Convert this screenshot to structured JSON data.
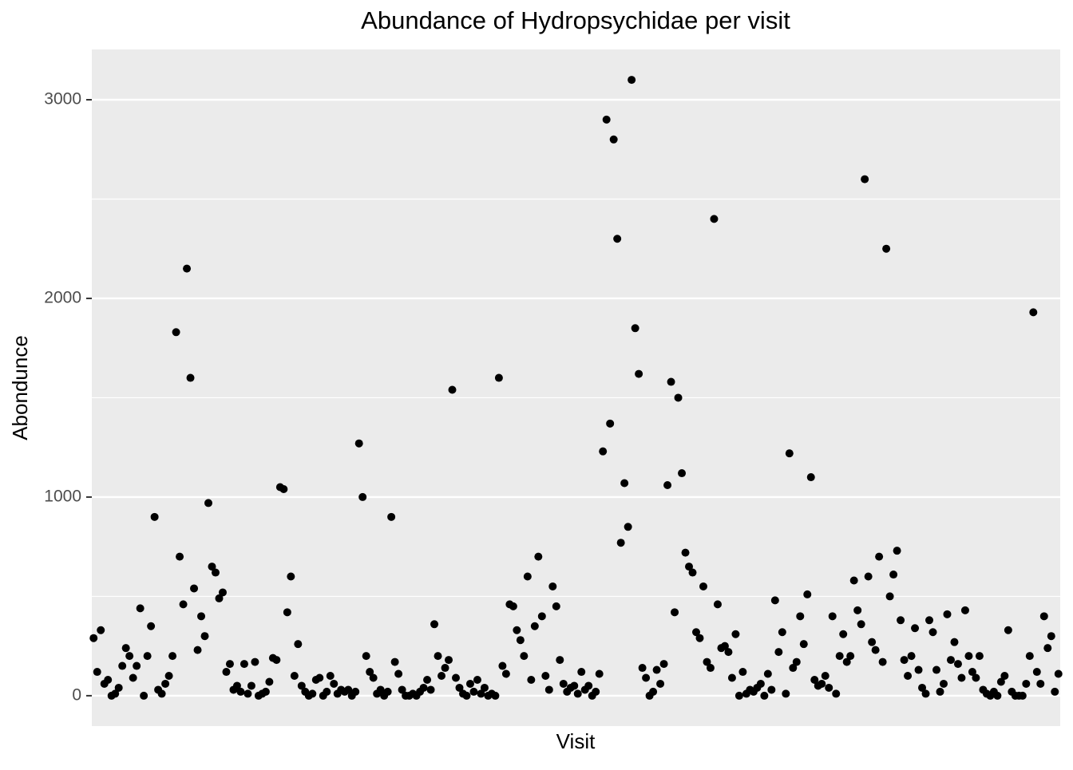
{
  "chart_data": {
    "type": "scatter",
    "title": "Abundance of Hydropsychidae per visit",
    "x_label": "Visit",
    "y_label": "Abondunce",
    "color": "#000000",
    "background": "#ebebeb",
    "grid": true,
    "ylim": [
      -153,
      3253
    ],
    "yticks": [
      0,
      1000,
      2000,
      3000
    ],
    "minor_yticks": [
      500,
      1500,
      2500
    ],
    "categories": [
      null,
      null,
      null,
      null,
      null,
      null,
      null,
      null,
      null,
      null,
      null,
      null,
      null,
      null,
      null,
      null,
      null,
      null,
      null,
      null,
      null,
      null,
      null,
      null,
      null,
      null,
      null,
      null,
      null,
      null,
      null,
      null,
      null,
      null,
      null,
      null,
      null,
      null,
      null,
      null,
      null,
      null,
      null,
      null,
      null,
      null,
      null,
      null,
      null,
      null,
      null,
      null,
      null,
      null,
      null,
      null,
      null,
      null,
      null,
      null,
      null,
      null,
      null,
      null,
      null,
      null,
      null,
      null,
      null,
      null,
      null,
      null,
      null,
      null,
      null,
      null,
      null,
      null,
      null,
      null,
      null,
      null,
      null,
      null,
      null,
      null,
      null,
      null,
      null,
      null,
      null,
      null,
      null,
      null,
      null,
      null,
      null,
      null,
      null,
      null,
      null,
      null,
      null,
      null,
      null,
      null,
      null,
      null,
      null,
      null,
      null,
      null,
      null,
      null,
      null,
      null,
      null,
      null,
      null,
      null,
      null,
      null,
      null,
      null,
      null,
      null,
      null,
      null,
      null,
      null,
      null,
      null,
      null,
      null,
      null,
      null,
      null,
      null,
      null,
      null,
      null,
      null,
      null,
      null,
      null,
      null,
      null,
      null,
      null,
      null,
      null,
      null,
      null,
      null,
      null,
      null,
      null,
      null,
      null,
      null,
      null,
      null,
      null,
      null,
      null,
      null,
      null,
      null,
      null,
      null,
      null,
      null,
      null,
      null,
      null,
      null,
      null,
      null,
      null,
      null,
      null,
      null,
      null,
      null,
      null,
      null,
      null,
      null,
      null,
      null,
      null,
      null,
      null,
      null,
      null,
      null,
      null,
      null,
      null,
      null,
      null,
      null,
      null,
      null,
      null,
      null,
      null,
      null,
      null,
      null,
      null,
      null,
      null,
      null,
      null,
      null,
      null,
      null,
      null,
      null,
      null,
      null,
      null,
      null,
      null,
      null,
      null,
      null,
      null,
      null,
      null,
      null,
      null,
      null,
      null,
      null,
      null,
      null,
      null,
      null,
      null,
      null,
      null,
      null,
      null,
      null,
      null,
      null,
      null,
      null,
      null,
      null,
      null,
      null,
      null,
      null,
      null,
      null,
      null,
      null,
      null,
      null,
      null,
      null,
      null,
      null,
      null,
      null,
      null,
      null
    ],
    "values": [
      290,
      120,
      330,
      60,
      80,
      0,
      10,
      40,
      150,
      240,
      200,
      90,
      150,
      440,
      0,
      200,
      350,
      900,
      30,
      10,
      60,
      100,
      200,
      1830,
      700,
      460,
      2150,
      1600,
      540,
      230,
      400,
      300,
      970,
      650,
      620,
      490,
      520,
      120,
      160,
      30,
      50,
      20,
      160,
      10,
      50,
      170,
      0,
      10,
      20,
      70,
      190,
      180,
      1050,
      1040,
      420,
      600,
      100,
      260,
      50,
      20,
      0,
      10,
      80,
      90,
      0,
      20,
      100,
      60,
      10,
      30,
      20,
      30,
      0,
      20,
      1270,
      1000,
      200,
      120,
      90,
      10,
      30,
      0,
      20,
      900,
      170,
      110,
      30,
      0,
      0,
      10,
      0,
      20,
      40,
      80,
      30,
      360,
      200,
      100,
      140,
      180,
      1540,
      90,
      40,
      10,
      0,
      60,
      20,
      80,
      10,
      40,
      0,
      10,
      0,
      1600,
      150,
      110,
      460,
      450,
      330,
      280,
      200,
      600,
      80,
      350,
      700,
      400,
      100,
      30,
      550,
      450,
      180,
      60,
      20,
      40,
      50,
      10,
      120,
      30,
      50,
      0,
      20,
      110,
      1230,
      2900,
      1370,
      2800,
      2300,
      770,
      1070,
      850,
      3100,
      1850,
      1620,
      140,
      90,
      0,
      20,
      130,
      60,
      160,
      1060,
      1580,
      420,
      1500,
      1120,
      720,
      650,
      620,
      320,
      290,
      550,
      170,
      140,
      2400,
      460,
      240,
      250,
      220,
      90,
      310,
      0,
      120,
      10,
      30,
      20,
      40,
      60,
      0,
      110,
      30,
      480,
      220,
      320,
      10,
      1220,
      140,
      170,
      400,
      260,
      510,
      1100,
      80,
      50,
      60,
      100,
      40,
      400,
      10,
      200,
      310,
      170,
      200,
      580,
      430,
      360,
      2600,
      600,
      270,
      230,
      700,
      170,
      2250,
      500,
      610,
      730,
      380,
      180,
      100,
      200,
      340,
      130,
      40,
      10,
      380,
      320,
      130,
      20,
      60,
      410,
      180,
      270,
      160,
      90,
      430,
      200,
      120,
      90,
      200,
      30,
      10,
      0,
      20,
      0,
      70,
      100,
      330,
      20,
      0,
      0,
      0,
      60,
      200,
      1930,
      120,
      60,
      400,
      240,
      300,
      20,
      110
    ]
  }
}
